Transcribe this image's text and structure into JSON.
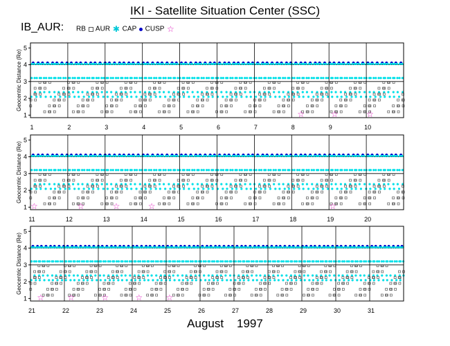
{
  "header": {
    "title": "IKI - Satellite Situation Center (SSC)",
    "satellite": "IB_AUR:",
    "legend": [
      "RB",
      "AUR",
      "CAP",
      "CUSP"
    ]
  },
  "footer": {
    "month": "August",
    "year": "1997"
  },
  "colors": {
    "RB": "#555555",
    "AUR": "#00e0e8",
    "CAP": "#0000c8",
    "CUSP": "#e020c0"
  },
  "chart_data": [
    {
      "type": "scatter",
      "ylabel": "Geocentric Distance (Re)",
      "ylim": [
        0.85,
        5.3
      ],
      "yticks": [
        1,
        2,
        3,
        4,
        5
      ],
      "xlim": [
        1,
        11
      ],
      "xticks": [
        "1",
        "2",
        "3",
        "4",
        "5",
        "6",
        "7",
        "8",
        "9",
        "10"
      ],
      "grid": true,
      "orbit_period_days": 0.128,
      "cusp_days": [
        8.25,
        9.15,
        10.1
      ]
    },
    {
      "type": "scatter",
      "ylabel": "Geocentric Distance (Re)",
      "ylim": [
        0.85,
        5.3
      ],
      "yticks": [
        1,
        2,
        3,
        4,
        5
      ],
      "xlim": [
        11,
        21
      ],
      "xticks": [
        "11",
        "12",
        "13",
        "14",
        "15",
        "16",
        "17",
        "18",
        "19",
        "20"
      ],
      "grid": true,
      "orbit_period_days": 0.128,
      "cusp_days": [
        11.1,
        12.35,
        13.3,
        14.25,
        19.1
      ]
    },
    {
      "type": "scatter",
      "ylabel": "Geocentric Distance (Re)",
      "ylim": [
        0.85,
        5.3
      ],
      "yticks": [
        1,
        2,
        3,
        4,
        5
      ],
      "xlim": [
        21,
        32
      ],
      "xticks": [
        "21",
        "22",
        "23",
        "24",
        "25",
        "26",
        "27",
        "28",
        "29",
        "30",
        "31"
      ],
      "grid": true,
      "orbit_period_days": 0.128,
      "cusp_days": [
        21.3,
        22.2,
        23.2,
        24.2,
        25.1
      ]
    }
  ]
}
